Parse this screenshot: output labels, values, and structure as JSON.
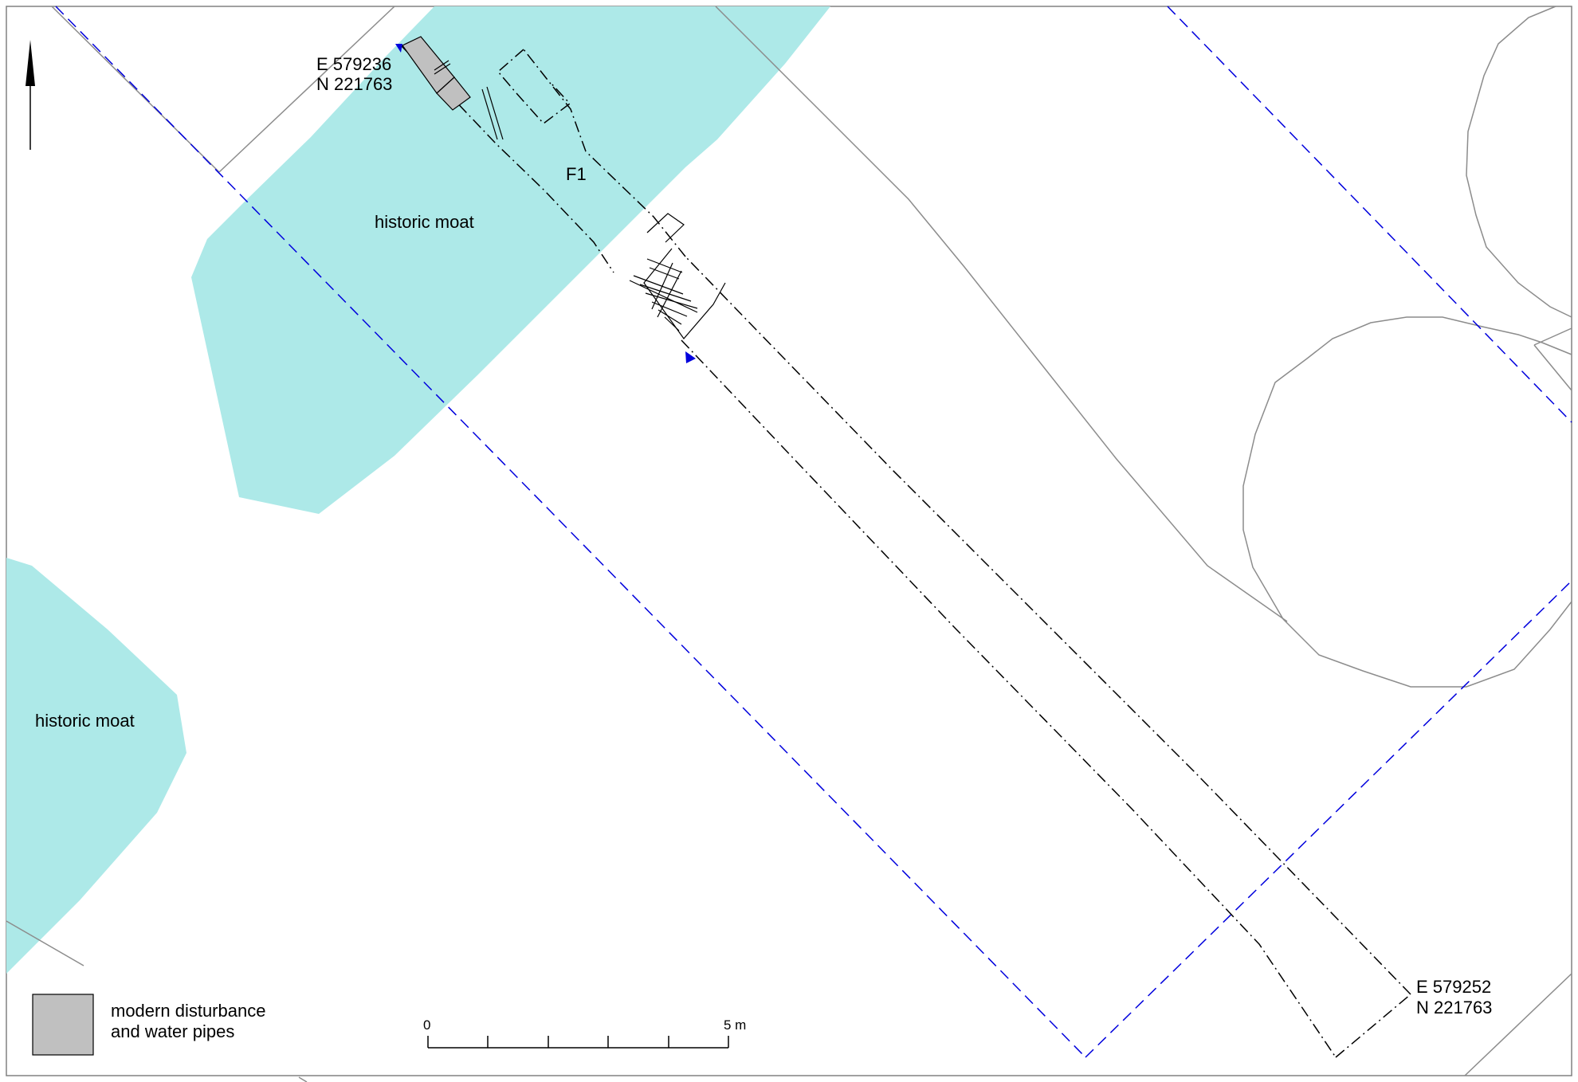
{
  "map": {
    "labels": {
      "moat_upper": "historic moat",
      "moat_lower": "historic moat",
      "feature": "F1"
    },
    "coords": {
      "top_easting": "E 579236",
      "top_northing": "N 221763",
      "bottom_easting": "E 579252",
      "bottom_northing": "N 221763"
    },
    "legend": {
      "line1": "modern disturbance",
      "line2": "and water pipes",
      "swatch_color": "#c0c0c0"
    },
    "scale": {
      "start": "0",
      "end": "5 m"
    },
    "colors": {
      "moat": "#ade9e8",
      "grid": "#0000dd",
      "trench": "#000000",
      "base": "#8c8c8c"
    },
    "icons": [
      "north-arrow-icon"
    ]
  }
}
